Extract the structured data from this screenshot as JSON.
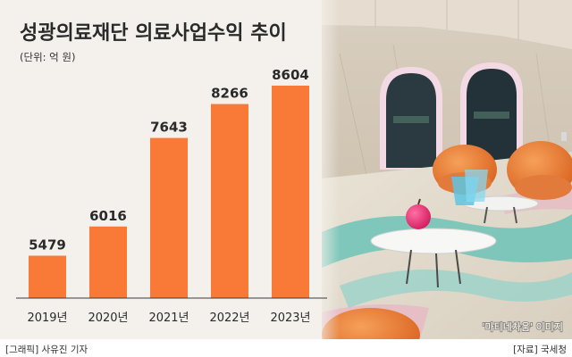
{
  "header": {
    "title": "성광의료재단 의료사업수익 추이",
    "unit": "(단위: 억 원)"
  },
  "photo": {
    "caption": "'마티네차움' 이미지"
  },
  "footer": {
    "credit": "[그래픽] 사유진 기자",
    "source": "[자료] 국세청"
  },
  "colors": {
    "bar": "#f97a37",
    "text": "#2a2a2a",
    "floor": "#6fc3b7"
  },
  "chart_data": {
    "type": "bar",
    "title": "성광의료재단 의료사업수익 추이",
    "ylabel": "(단위: 억 원)",
    "categories": [
      "2019년",
      "2020년",
      "2021년",
      "2022년",
      "2023년"
    ],
    "values": [
      5479,
      6016,
      7643,
      8266,
      8604
    ],
    "ylim": [
      4700,
      8800
    ],
    "grid": false,
    "legend": "none"
  }
}
